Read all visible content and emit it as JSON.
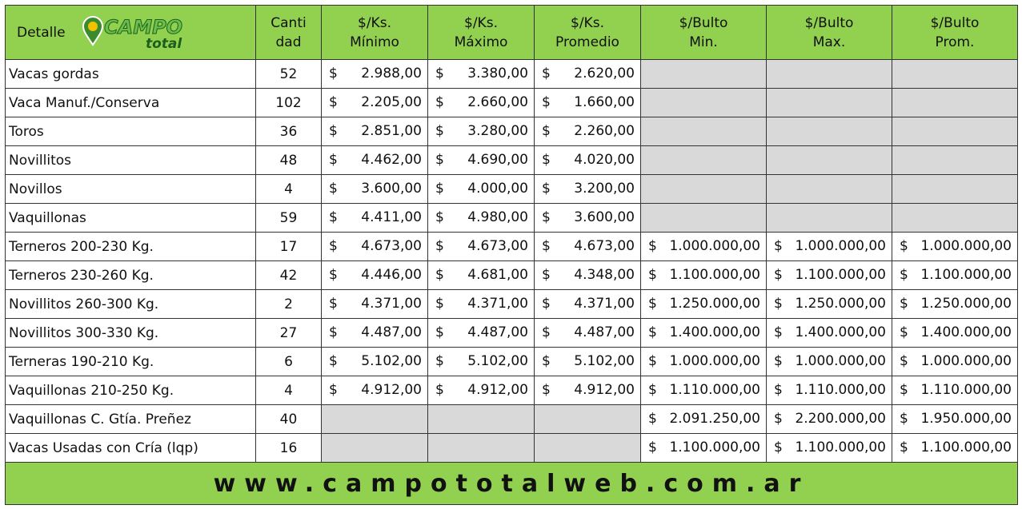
{
  "header": {
    "detail": "Detalle",
    "logo": {
      "main": "CAMPO",
      "sub": "total"
    },
    "columns": [
      [
        "Canti",
        "dad"
      ],
      [
        "$/Ks.",
        "Mínimo"
      ],
      [
        "$/Ks.",
        "Máximo"
      ],
      [
        "$/Ks.",
        "Promedio"
      ],
      [
        "$/Bulto",
        "Min."
      ],
      [
        "$/Bulto",
        "Max."
      ],
      [
        "$/Bulto",
        "Prom."
      ]
    ]
  },
  "currency": "$",
  "rows": [
    {
      "label": "Vacas gordas",
      "qty": 52,
      "prices": [
        "2.988,00",
        "3.380,00",
        "2.620,00",
        null,
        null,
        null
      ]
    },
    {
      "label": "Vaca Manuf./Conserva",
      "qty": 102,
      "prices": [
        "2.205,00",
        "2.660,00",
        "1.660,00",
        null,
        null,
        null
      ]
    },
    {
      "label": "Toros",
      "qty": 36,
      "prices": [
        "2.851,00",
        "3.280,00",
        "2.260,00",
        null,
        null,
        null
      ]
    },
    {
      "label": "Novillitos",
      "qty": 48,
      "prices": [
        "4.462,00",
        "4.690,00",
        "4.020,00",
        null,
        null,
        null
      ]
    },
    {
      "label": "Novillos",
      "qty": 4,
      "prices": [
        "3.600,00",
        "4.000,00",
        "3.200,00",
        null,
        null,
        null
      ]
    },
    {
      "label": "Vaquillonas",
      "qty": 59,
      "prices": [
        "4.411,00",
        "4.980,00",
        "3.600,00",
        null,
        null,
        null
      ]
    },
    {
      "label": "Terneros 200-230 Kg.",
      "qty": 17,
      "prices": [
        "4.673,00",
        "4.673,00",
        "4.673,00",
        "1.000.000,00",
        "1.000.000,00",
        "1.000.000,00"
      ]
    },
    {
      "label": "Terneros 230-260 Kg.",
      "qty": 42,
      "prices": [
        "4.446,00",
        "4.681,00",
        "4.348,00",
        "1.100.000,00",
        "1.100.000,00",
        "1.100.000,00"
      ]
    },
    {
      "label": "Novillitos 260-300 Kg.",
      "qty": 2,
      "prices": [
        "4.371,00",
        "4.371,00",
        "4.371,00",
        "1.250.000,00",
        "1.250.000,00",
        "1.250.000,00"
      ]
    },
    {
      "label": "Novillitos 300-330 Kg.",
      "qty": 27,
      "prices": [
        "4.487,00",
        "4.487,00",
        "4.487,00",
        "1.400.000,00",
        "1.400.000,00",
        "1.400.000,00"
      ]
    },
    {
      "label": "Terneras 190-210 Kg.",
      "qty": 6,
      "prices": [
        "5.102,00",
        "5.102,00",
        "5.102,00",
        "1.000.000,00",
        "1.000.000,00",
        "1.000.000,00"
      ]
    },
    {
      "label": "Vaquillonas 210-250 Kg.",
      "qty": 4,
      "prices": [
        "4.912,00",
        "4.912,00",
        "4.912,00",
        "1.110.000,00",
        "1.110.000,00",
        "1.110.000,00"
      ]
    },
    {
      "label": "Vaquillonas C. Gtía. Preñez",
      "qty": 40,
      "prices": [
        null,
        null,
        null,
        "2.091.250,00",
        "2.200.000,00",
        "1.950.000,00"
      ]
    },
    {
      "label": "Vacas Usadas con Cría (lqp)",
      "qty": 16,
      "prices": [
        null,
        null,
        null,
        "1.100.000,00",
        "1.100.000,00",
        "1.100.000,00"
      ]
    }
  ],
  "footer": "www.campototalweb.com.ar"
}
